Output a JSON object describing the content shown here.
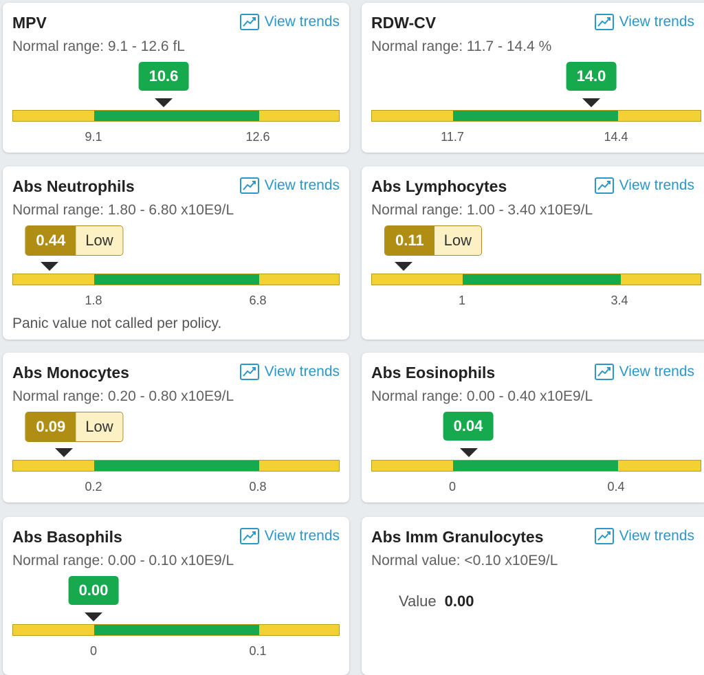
{
  "colors": {
    "normal_green": "#16a94d",
    "low_gold": "#b08d13",
    "range_yellow": "#f3d033",
    "link_blue": "#2a97c8"
  },
  "trends_label": "View trends",
  "cards": {
    "mpv": {
      "title": "MPV",
      "range": "Normal range: 9.1 - 12.6 fL",
      "value": "10.6",
      "lo": "9.1",
      "hi": "12.6"
    },
    "rdw": {
      "title": "RDW-CV",
      "range": "Normal range: 11.7 - 14.4 %",
      "value": "14.0",
      "lo": "11.7",
      "hi": "14.4"
    },
    "neut": {
      "title": "Abs Neutrophils",
      "range": "Normal range: 1.80 - 6.80 x10E9/L",
      "value": "0.44",
      "flag": "Low",
      "lo": "1.8",
      "hi": "6.8",
      "note": "Panic value not called per policy."
    },
    "lymph": {
      "title": "Abs Lymphocytes",
      "range": "Normal range: 1.00 - 3.40 x10E9/L",
      "value": "0.11",
      "flag": "Low",
      "lo": "1",
      "hi": "3.4"
    },
    "mono": {
      "title": "Abs Monocytes",
      "range": "Normal range: 0.20 - 0.80 x10E9/L",
      "value": "0.09",
      "flag": "Low",
      "lo": "0.2",
      "hi": "0.8"
    },
    "eos": {
      "title": "Abs Eosinophils",
      "range": "Normal range: 0.00 - 0.40 x10E9/L",
      "value": "0.04",
      "lo": "0",
      "hi": "0.4"
    },
    "baso": {
      "title": "Abs Basophils",
      "range": "Normal range: 0.00 - 0.10 x10E9/L",
      "value": "0.00",
      "lo": "0",
      "hi": "0.1"
    },
    "igran": {
      "title": "Abs Imm Granulocytes",
      "range": "Normal value: <0.10 x10E9/L",
      "value_label": "Value",
      "value": "0.00"
    }
  }
}
